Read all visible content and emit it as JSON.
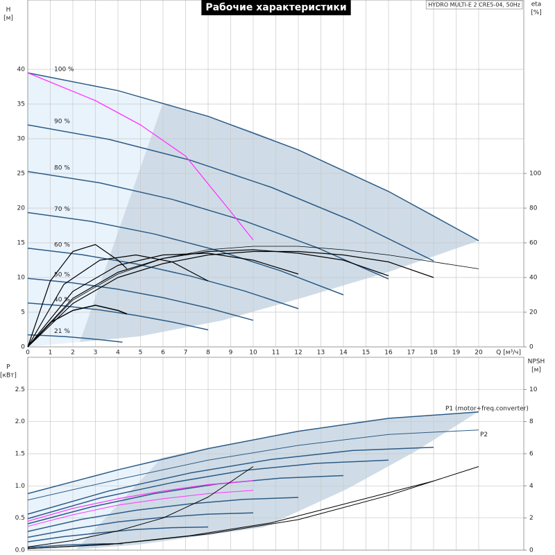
{
  "chart_data": [
    {
      "type": "line",
      "title": "Рабочие характеристики",
      "subtitle": "HYDRO MULTI-E 2 CRE5-04, 50Hz",
      "xlabel": "Q [м³/ч]",
      "ylabel": "H",
      "yunit": "[м]",
      "y2label": "eta",
      "y2unit": "[%]",
      "xlim": [
        0,
        22
      ],
      "ylim": [
        0,
        50
      ],
      "y2lim": [
        0,
        200
      ],
      "xticks": [
        0,
        1,
        2,
        3,
        4,
        5,
        6,
        7,
        8,
        9,
        10,
        11,
        12,
        13,
        14,
        15,
        16,
        17,
        18,
        19,
        20
      ],
      "yticks": [
        0,
        5,
        10,
        15,
        20,
        25,
        30,
        35,
        40
      ],
      "y2ticks": [
        0,
        20,
        40,
        60,
        80,
        100
      ],
      "series": [
        {
          "name": "100 %",
          "color": "#2b5a85",
          "linewidth": 1.5,
          "x": [
            0,
            4,
            8,
            12,
            16,
            20
          ],
          "values": [
            39.5,
            36.93,
            33.23,
            28.39,
            22.41,
            15.3
          ]
        },
        {
          "name": "90 %",
          "color": "#2b5a85",
          "linewidth": 1.5,
          "x": [
            0,
            3.6,
            7.2,
            10.8,
            14.4,
            18
          ],
          "values": [
            32.0,
            29.91,
            26.92,
            23.0,
            18.15,
            12.39
          ]
        },
        {
          "name": "80 %",
          "color": "#2b5a85",
          "linewidth": 1.5,
          "x": [
            0,
            3.2,
            6.4,
            9.6,
            12.8,
            16
          ],
          "values": [
            25.28,
            23.64,
            21.27,
            18.17,
            14.34,
            9.79
          ]
        },
        {
          "name": "70 %",
          "color": "#2b5a85",
          "linewidth": 1.5,
          "x": [
            0,
            2.8,
            5.6,
            8.4,
            11.2,
            14
          ],
          "values": [
            19.36,
            18.1,
            16.28,
            13.91,
            10.98,
            7.5
          ]
        },
        {
          "name": "60 %",
          "color": "#2b5a85",
          "linewidth": 1.5,
          "x": [
            0,
            2.4,
            4.8,
            7.2,
            9.6,
            12
          ],
          "values": [
            14.22,
            13.29,
            11.96,
            10.22,
            8.07,
            5.51
          ]
        },
        {
          "name": "50 %",
          "color": "#2b5a85",
          "linewidth": 1.5,
          "x": [
            0,
            2,
            4,
            6,
            8,
            10
          ],
          "values": [
            9.88,
            9.23,
            8.31,
            7.1,
            5.6,
            3.83
          ]
        },
        {
          "name": "40 %",
          "color": "#2b5a85",
          "linewidth": 1.5,
          "x": [
            0,
            1.6,
            3.2,
            4.8,
            6.4,
            8
          ],
          "values": [
            6.32,
            5.91,
            5.32,
            4.54,
            3.59,
            2.45
          ]
        },
        {
          "name": "21 %",
          "color": "#2b5a85",
          "linewidth": 1.5,
          "x": [
            0,
            0.84,
            1.68,
            2.52,
            3.36,
            4.2
          ],
          "values": [
            1.74,
            1.63,
            1.47,
            1.25,
            0.99,
            0.67
          ]
        },
        {
          "color": "#ff33ff",
          "linewidth": 1.3,
          "x": [
            0,
            3,
            5,
            7,
            9,
            10
          ],
          "values": [
            39.5,
            35.5,
            32,
            27.5,
            19.5,
            15.4
          ]
        },
        {
          "color": "#000000",
          "linewidth": 0.8,
          "axis": "y2",
          "x": [
            0,
            2,
            4,
            6,
            8,
            10,
            12,
            14,
            16,
            18,
            20
          ],
          "values": [
            0,
            27,
            42,
            51,
            56,
            58,
            58,
            56,
            53,
            49,
            45
          ]
        },
        {
          "color": "#000000",
          "linewidth": 1.2,
          "axis": "y2",
          "x": [
            0,
            2,
            4,
            6,
            8,
            10,
            12,
            14,
            16,
            18
          ],
          "values": [
            0,
            25,
            40,
            48,
            53,
            55,
            55,
            53,
            49,
            40
          ]
        },
        {
          "color": "#000000",
          "linewidth": 1.2,
          "axis": "y2",
          "x": [
            0,
            2,
            4,
            6,
            8,
            10,
            12,
            14,
            16
          ],
          "values": [
            0,
            28,
            43,
            51,
            55,
            56,
            54,
            50,
            41
          ]
        },
        {
          "color": "#000000",
          "linewidth": 1.2,
          "axis": "y2",
          "x": [
            0,
            2,
            4,
            6,
            8,
            10,
            12
          ],
          "values": [
            0,
            32,
            47,
            53,
            54,
            50,
            42
          ]
        },
        {
          "color": "#000000",
          "linewidth": 1.2,
          "axis": "y2",
          "x": [
            0,
            1.6,
            3.2,
            4.8,
            6.4,
            8
          ],
          "values": [
            0,
            36,
            50,
            53,
            49,
            38
          ]
        },
        {
          "color": "#000000",
          "linewidth": 1.2,
          "axis": "y2",
          "x": [
            0,
            1,
            2,
            3,
            4,
            4.4
          ],
          "values": [
            0,
            38,
            55,
            59,
            50,
            45
          ]
        },
        {
          "color": "#000000",
          "linewidth": 1.5,
          "axis": "y2",
          "x": [
            0,
            1,
            2,
            3,
            4,
            4.4
          ],
          "values": [
            0,
            14,
            21,
            24,
            21,
            19
          ]
        }
      ]
    },
    {
      "type": "line",
      "ylabel": "P",
      "yunit": "[кВт]",
      "y2label": "NPSH",
      "y2unit": "[м]",
      "xlim": [
        0,
        22
      ],
      "ylim": [
        0,
        3
      ],
      "y2lim": [
        0,
        12
      ],
      "xticks": [
        0,
        1,
        2,
        3,
        4,
        5,
        6,
        7,
        8,
        9,
        10,
        11,
        12,
        13,
        14,
        15,
        16,
        17,
        18,
        19,
        20
      ],
      "yticks": [
        {
          "value": 0,
          "label": "0.0"
        },
        0.5,
        {
          "value": 1,
          "label": "1.0"
        },
        1.5,
        {
          "value": 2,
          "label": "2.0"
        },
        2.5
      ],
      "y2ticks": [
        0,
        2,
        4,
        6,
        8,
        10
      ],
      "series": [
        {
          "name": "P1 (motor+freq.converter)",
          "color": "#2b5a85",
          "linewidth": 1.5,
          "x": [
            0,
            4,
            8,
            12,
            16,
            20
          ],
          "values": [
            0.88,
            1.25,
            1.58,
            1.85,
            2.05,
            2.15
          ]
        },
        {
          "name": "P2",
          "color": "#2b5a85",
          "linewidth": 1.0,
          "x": [
            0,
            4,
            8,
            12,
            16,
            20
          ],
          "values": [
            0.78,
            1.1,
            1.4,
            1.63,
            1.8,
            1.87
          ]
        },
        {
          "color": "#2b5a85",
          "linewidth": 1.5,
          "x": [
            0,
            3.6,
            7.2,
            10.8,
            14.4,
            18
          ],
          "values": [
            0.56,
            0.92,
            1.2,
            1.41,
            1.55,
            1.6
          ]
        },
        {
          "color": "#2b5a85",
          "linewidth": 1.5,
          "x": [
            0,
            3.2,
            6.4,
            9.6,
            12.8,
            16
          ],
          "values": [
            0.49,
            0.81,
            1.05,
            1.24,
            1.35,
            1.4
          ]
        },
        {
          "color": "#2b5a85",
          "linewidth": 1.5,
          "x": [
            0,
            2.8,
            5.6,
            8.4,
            11.2,
            14
          ],
          "values": [
            0.41,
            0.67,
            0.88,
            1.03,
            1.12,
            1.16
          ]
        },
        {
          "color": "#2b5a85",
          "linewidth": 1.5,
          "x": [
            0,
            2.4,
            4.8,
            7.2,
            9.6,
            12
          ],
          "values": [
            0.29,
            0.48,
            0.62,
            0.72,
            0.79,
            0.82
          ]
        },
        {
          "color": "#2b5a85",
          "linewidth": 1.5,
          "x": [
            0,
            2,
            4,
            6,
            8,
            10
          ],
          "values": [
            0.2,
            0.33,
            0.44,
            0.51,
            0.56,
            0.58
          ]
        },
        {
          "color": "#2b5a85",
          "linewidth": 1.5,
          "x": [
            0,
            1.6,
            3.2,
            4.8,
            6.4,
            8
          ],
          "values": [
            0.13,
            0.21,
            0.27,
            0.32,
            0.35,
            0.36
          ]
        },
        {
          "color": "#2b5a85",
          "linewidth": 1.5,
          "x": [
            0,
            0.84,
            1.68,
            2.52,
            3.36,
            4.2
          ],
          "values": [
            0.04,
            0.06,
            0.08,
            0.09,
            0.1,
            0.1
          ]
        },
        {
          "color": "#ff33ff",
          "linewidth": 1.2,
          "x": [
            0,
            2,
            4,
            6,
            8,
            10
          ],
          "values": [
            0.45,
            0.65,
            0.8,
            0.92,
            1.02,
            1.08
          ]
        },
        {
          "color": "#ff33ff",
          "linewidth": 1.0,
          "x": [
            0,
            2,
            4,
            6,
            8,
            10
          ],
          "values": [
            0.37,
            0.55,
            0.7,
            0.8,
            0.88,
            0.93
          ]
        },
        {
          "color": "#000000",
          "linewidth": 1.0,
          "axis": "y2",
          "x": [
            0,
            2,
            4,
            6,
            8,
            10
          ],
          "values": [
            0.2,
            0.6,
            1.2,
            2.0,
            3.3,
            5.2
          ]
        },
        {
          "color": "#000000",
          "linewidth": 1.0,
          "axis": "y2",
          "x": [
            0,
            4,
            8,
            12,
            16,
            20
          ],
          "values": [
            0.1,
            0.4,
            1.0,
            1.9,
            3.4,
            5.2
          ]
        },
        {
          "color": "#000000",
          "linewidth": 1.0,
          "axis": "y2",
          "x": [
            0,
            3.6,
            7.2,
            10.8,
            14.4,
            18
          ],
          "values": [
            0.1,
            0.35,
            0.9,
            1.7,
            3.0,
            4.3
          ]
        }
      ]
    }
  ]
}
